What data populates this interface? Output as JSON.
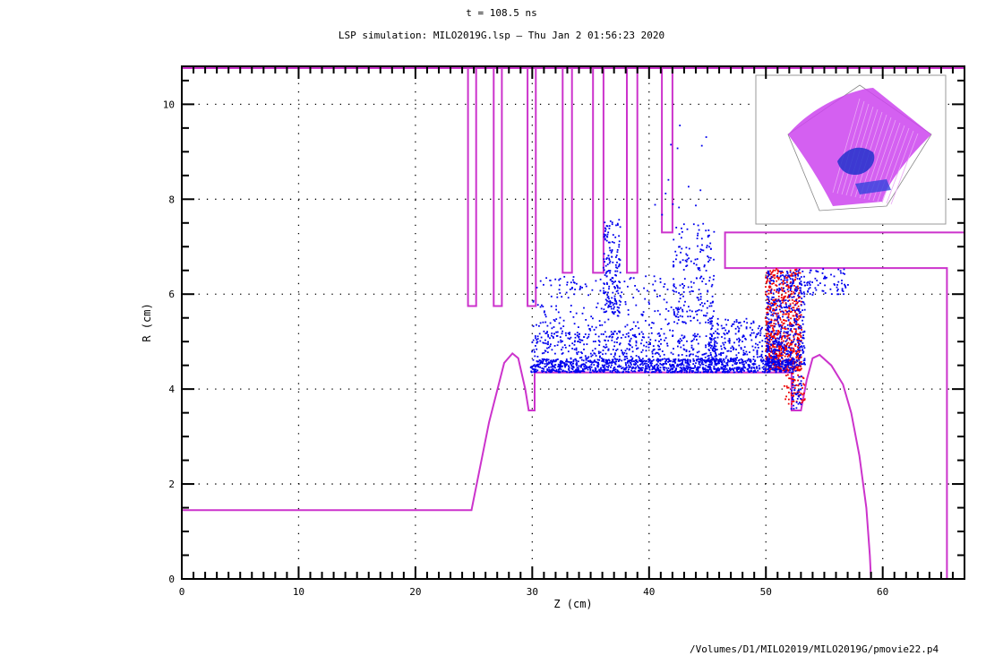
{
  "header": {
    "title": "t = 108.5 ns",
    "subtitle": "LSP simulation: MILO2019G.lsp — Thu Jan  2 01:56:23 2020"
  },
  "footer": {
    "path": "/Volumes/D1/MILO2019/MILO2019G/pmovie22.p4"
  },
  "colors": {
    "geometry": "#cc33cc",
    "electrons": "#0000ee",
    "ions": "#ee0000",
    "inset_surface": "#cc44ee"
  },
  "chart_data": {
    "type": "scatter",
    "xlabel": "Z (cm)",
    "ylabel": "R (cm)",
    "xlim": [
      0,
      67
    ],
    "ylim": [
      0,
      10.8
    ],
    "x_ticks": [
      0,
      10,
      20,
      30,
      40,
      50,
      60
    ],
    "x_tick_labels": [
      "0",
      "10",
      "20",
      "30",
      "40",
      "50",
      "60"
    ],
    "y_ticks": [
      0,
      2,
      4,
      6,
      8,
      10
    ],
    "y_tick_labels": [
      "0",
      "2",
      "4",
      "6",
      "8",
      "10"
    ],
    "grid": true,
    "geometry_outline": [
      {
        "name": "cathode-shank",
        "points": [
          [
            0,
            1.45
          ],
          [
            24.8,
            1.45
          ],
          [
            26.3,
            3.3
          ],
          [
            27.6,
            4.55
          ],
          [
            28.3,
            4.75
          ],
          [
            28.8,
            4.65
          ],
          [
            29.4,
            4.0
          ],
          [
            29.7,
            3.55
          ],
          [
            30.2,
            3.55
          ],
          [
            30.2,
            4.35
          ],
          [
            52.2,
            4.35
          ],
          [
            52.2,
            3.55
          ],
          [
            53.0,
            3.55
          ],
          [
            53.5,
            4.2
          ],
          [
            54.0,
            4.65
          ],
          [
            54.6,
            4.72
          ],
          [
            55.6,
            4.5
          ],
          [
            56.6,
            4.1
          ],
          [
            57.3,
            3.5
          ],
          [
            58.0,
            2.6
          ],
          [
            58.6,
            1.5
          ],
          [
            58.9,
            0.5
          ],
          [
            59.0,
            0.0
          ]
        ]
      },
      {
        "name": "vane-1",
        "points": [
          [
            24.5,
            10.8
          ],
          [
            24.5,
            5.75
          ],
          [
            25.2,
            5.75
          ],
          [
            25.2,
            10.8
          ]
        ]
      },
      {
        "name": "vane-2",
        "points": [
          [
            26.7,
            10.8
          ],
          [
            26.7,
            5.75
          ],
          [
            27.4,
            5.75
          ],
          [
            27.4,
            10.8
          ]
        ]
      },
      {
        "name": "vane-3",
        "points": [
          [
            29.6,
            10.8
          ],
          [
            29.6,
            5.75
          ],
          [
            30.3,
            5.75
          ],
          [
            30.3,
            10.8
          ]
        ]
      },
      {
        "name": "vane-4",
        "points": [
          [
            32.6,
            10.8
          ],
          [
            32.6,
            6.45
          ],
          [
            33.4,
            6.45
          ],
          [
            33.4,
            10.8
          ]
        ]
      },
      {
        "name": "vane-5",
        "points": [
          [
            35.2,
            10.8
          ],
          [
            35.2,
            6.45
          ],
          [
            36.1,
            6.45
          ],
          [
            36.1,
            10.8
          ]
        ]
      },
      {
        "name": "vane-6",
        "points": [
          [
            38.1,
            10.8
          ],
          [
            38.1,
            6.45
          ],
          [
            39.0,
            6.45
          ],
          [
            39.0,
            10.8
          ]
        ]
      },
      {
        "name": "vane-7",
        "points": [
          [
            41.1,
            10.8
          ],
          [
            41.1,
            7.3
          ],
          [
            42.0,
            7.3
          ],
          [
            42.0,
            10.8
          ]
        ]
      },
      {
        "name": "collector",
        "points": [
          [
            67,
            7.3
          ],
          [
            46.5,
            7.3
          ],
          [
            46.5,
            6.55
          ],
          [
            65.5,
            6.55
          ],
          [
            65.5,
            0.0
          ]
        ]
      }
    ],
    "series": [
      {
        "kind": "electrons",
        "regions": [
          {
            "x": [
              29.8,
              52.5
            ],
            "y": [
              4.37,
              4.65
            ],
            "n": 1100
          },
          {
            "x": [
              29.8,
              46.0
            ],
            "y": [
              4.6,
              5.2
            ],
            "n": 420
          },
          {
            "x": [
              30.0,
              42.0
            ],
            "y": [
              5.1,
              6.4
            ],
            "n": 230
          },
          {
            "x": [
              36.0,
              37.5
            ],
            "y": [
              5.6,
              7.6
            ],
            "n": 160
          },
          {
            "x": [
              42.0,
              45.5
            ],
            "y": [
              5.4,
              7.5
            ],
            "n": 200
          },
          {
            "x": [
              45.0,
              51.0
            ],
            "y": [
              4.6,
              5.5
            ],
            "n": 260
          },
          {
            "x": [
              50.0,
              53.3
            ],
            "y": [
              4.5,
              6.5
            ],
            "n": 420
          },
          {
            "x": [
              52.0,
              57.0
            ],
            "y": [
              6.0,
              6.55
            ],
            "n": 90
          },
          {
            "x": [
              52.0,
              53.0
            ],
            "y": [
              3.6,
              4.3
            ],
            "n": 40
          },
          {
            "x": [
              40.0,
              45.0
            ],
            "y": [
              7.6,
              9.8
            ],
            "n": 14
          }
        ]
      },
      {
        "kind": "ions",
        "regions": [
          {
            "x": [
              49.9,
              53.0
            ],
            "y": [
              4.4,
              6.55
            ],
            "n": 700
          },
          {
            "x": [
              51.5,
              53.3
            ],
            "y": [
              3.7,
              4.4
            ],
            "n": 60
          }
        ]
      }
    ]
  }
}
